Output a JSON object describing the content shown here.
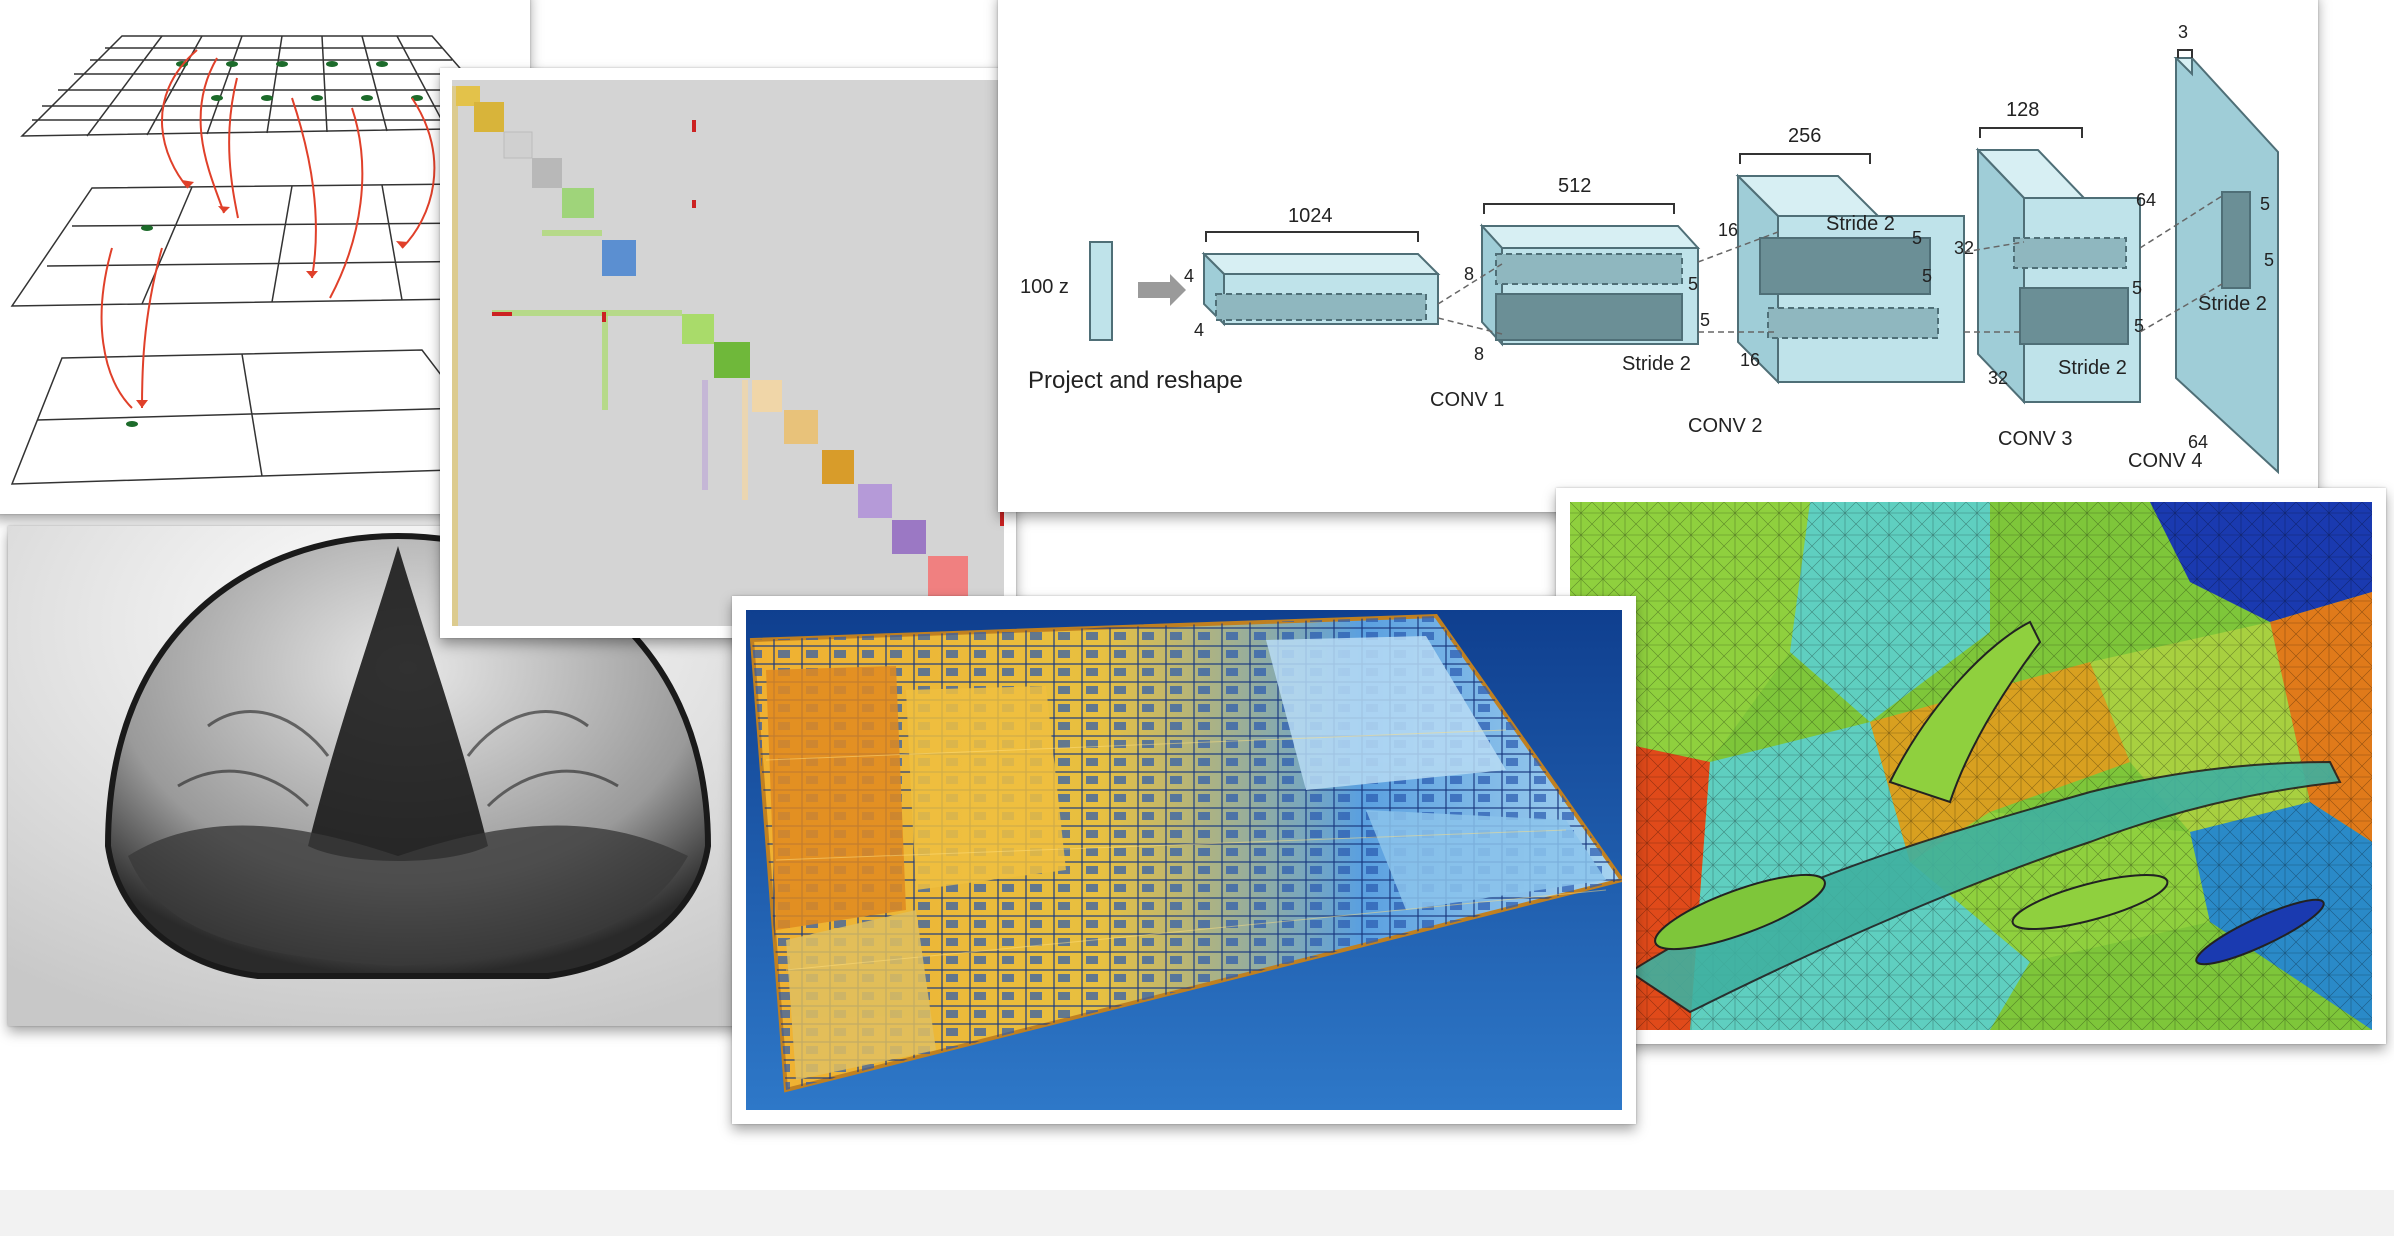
{
  "collage": {
    "photos": [
      {
        "name": "multigrid-hierarchy",
        "kind": "photo"
      },
      {
        "name": "shock-wave-simulation",
        "kind": "photo"
      },
      {
        "name": "sparse-matrix-pattern",
        "kind": "photo"
      },
      {
        "name": "gan-architecture-diagram",
        "kind": "diagram"
      },
      {
        "name": "cpu-die-shot",
        "kind": "photo"
      },
      {
        "name": "aircraft-mesh-partition",
        "kind": "photo"
      }
    ]
  },
  "dcgan": {
    "input_label": "100 z",
    "caption": "Project and reshape",
    "stride": "Stride 2",
    "layers": [
      {
        "name": "CONV 1",
        "width": "1024",
        "h": "4",
        "d": "4"
      },
      {
        "name": "CONV 2",
        "width": "512",
        "h": "8",
        "d": "8"
      },
      {
        "name": "CONV 3",
        "width": "256",
        "h": "16",
        "d": "16"
      },
      {
        "name": "CONV 4",
        "width": "128",
        "h": "32",
        "d": "32"
      }
    ],
    "output": {
      "width": "3",
      "h": "64",
      "d": "64"
    },
    "kernel": "5"
  },
  "colors": {
    "block_face": "#bfe3ea",
    "block_top": "#d7eff3",
    "block_side": "#9fcdd7",
    "block_edge": "#4f6f77",
    "inner_dark": "#6b8f96",
    "arrow_red": "#e0402a",
    "chip_blue": "#1d5fb0"
  }
}
